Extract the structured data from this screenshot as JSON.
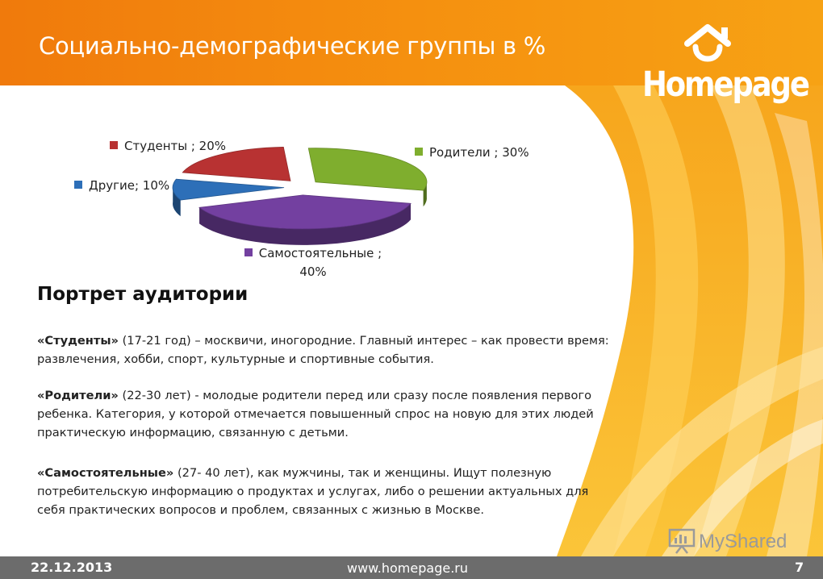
{
  "slide": {
    "title": "Социально-демографические группы в %",
    "logo_text": "Homepage",
    "colors": {
      "accent": "#f39a12",
      "header": "#f2830c",
      "footer": "#6c6c6c"
    }
  },
  "chart_data": {
    "type": "pie",
    "title": "",
    "slices": [
      {
        "label": "Студенты",
        "value": 20,
        "color": "#b83232"
      },
      {
        "label": "Родители",
        "value": 30,
        "color": "#7fae2e"
      },
      {
        "label": "Самостоятельные",
        "value": 40,
        "color": "#7340a0"
      },
      {
        "label": "Другие",
        "value": 10,
        "color": "#2d6fb8"
      }
    ],
    "legend": {
      "students": "Студенты ; 20%",
      "parents": "Родители ; 30%",
      "independent_line1": "Самостоятельные ;",
      "independent_line2": "40%",
      "others": "Другие; 10%"
    },
    "style": "3d-exploded"
  },
  "portrait": {
    "heading": "Портрет аудитории",
    "students": {
      "name": "«Студенты»",
      "text": " (17-21 год) – москвичи, иногородние. Главный интерес – как провести время: развлечения, хобби, спорт, культурные и спортивные события."
    },
    "parents": {
      "name": "«Родители»",
      "text": " (22-30 лет) - молодые родители перед или сразу после появления первого ребенка. Категория, у которой отмечается повышенный спрос на новую для этих людей практическую информацию, связанную с детьми."
    },
    "independent": {
      "name": "«Самостоятельные»",
      "text": " (27- 40 лет), как мужчины, так и женщины.  Ищут полезную потребительскую информацию о продуктах и услугах, либо о решении актуальных для себя практических вопросов и проблем, связанных с жизнью в Москве."
    }
  },
  "footer": {
    "date": "22.12.2013",
    "url": "www.homepage.ru",
    "page": "7"
  },
  "watermark": {
    "text": "MyShared"
  }
}
